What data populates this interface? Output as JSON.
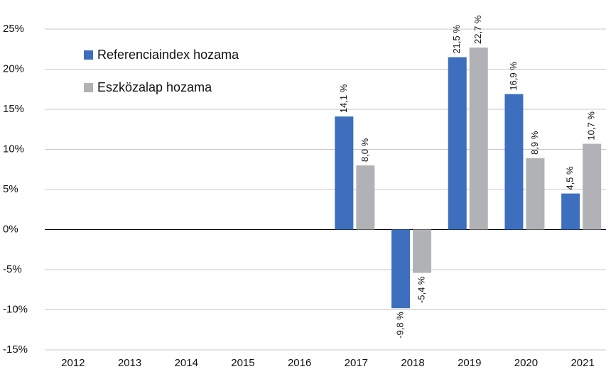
{
  "chart_data": {
    "type": "bar",
    "categories": [
      "2012",
      "2013",
      "2014",
      "2015",
      "2016",
      "2017",
      "2018",
      "2019",
      "2020",
      "2021"
    ],
    "series": [
      {
        "name": "Referenciaindex hozama",
        "color": "#3d6fbe",
        "values": [
          null,
          null,
          null,
          null,
          null,
          14.1,
          -9.8,
          21.5,
          16.9,
          4.5
        ],
        "value_labels": [
          null,
          null,
          null,
          null,
          null,
          "14,1 %",
          "-9,8 %",
          "21,5 %",
          "16,9 %",
          "4,5 %"
        ]
      },
      {
        "name": "Eszközalap hozama",
        "color": "#b1b2b6",
        "values": [
          null,
          null,
          null,
          null,
          null,
          8.0,
          -5.4,
          22.7,
          8.9,
          10.7
        ],
        "value_labels": [
          null,
          null,
          null,
          null,
          null,
          "8,0 %",
          "-5,4 %",
          "22,7 %",
          "8,9 %",
          "10,7 %"
        ]
      }
    ],
    "ylim": [
      -15,
      25
    ],
    "yticks": [
      {
        "value": -15,
        "label": "-15%"
      },
      {
        "value": -10,
        "label": "-10%"
      },
      {
        "value": -5,
        "label": "-5%"
      },
      {
        "value": 0,
        "label": "0%"
      },
      {
        "value": 5,
        "label": "5%"
      },
      {
        "value": 10,
        "label": "10%"
      },
      {
        "value": 15,
        "label": "15%"
      },
      {
        "value": 20,
        "label": "20%"
      },
      {
        "value": 25,
        "label": "25%"
      }
    ],
    "grid": true,
    "legend": "upper left"
  }
}
